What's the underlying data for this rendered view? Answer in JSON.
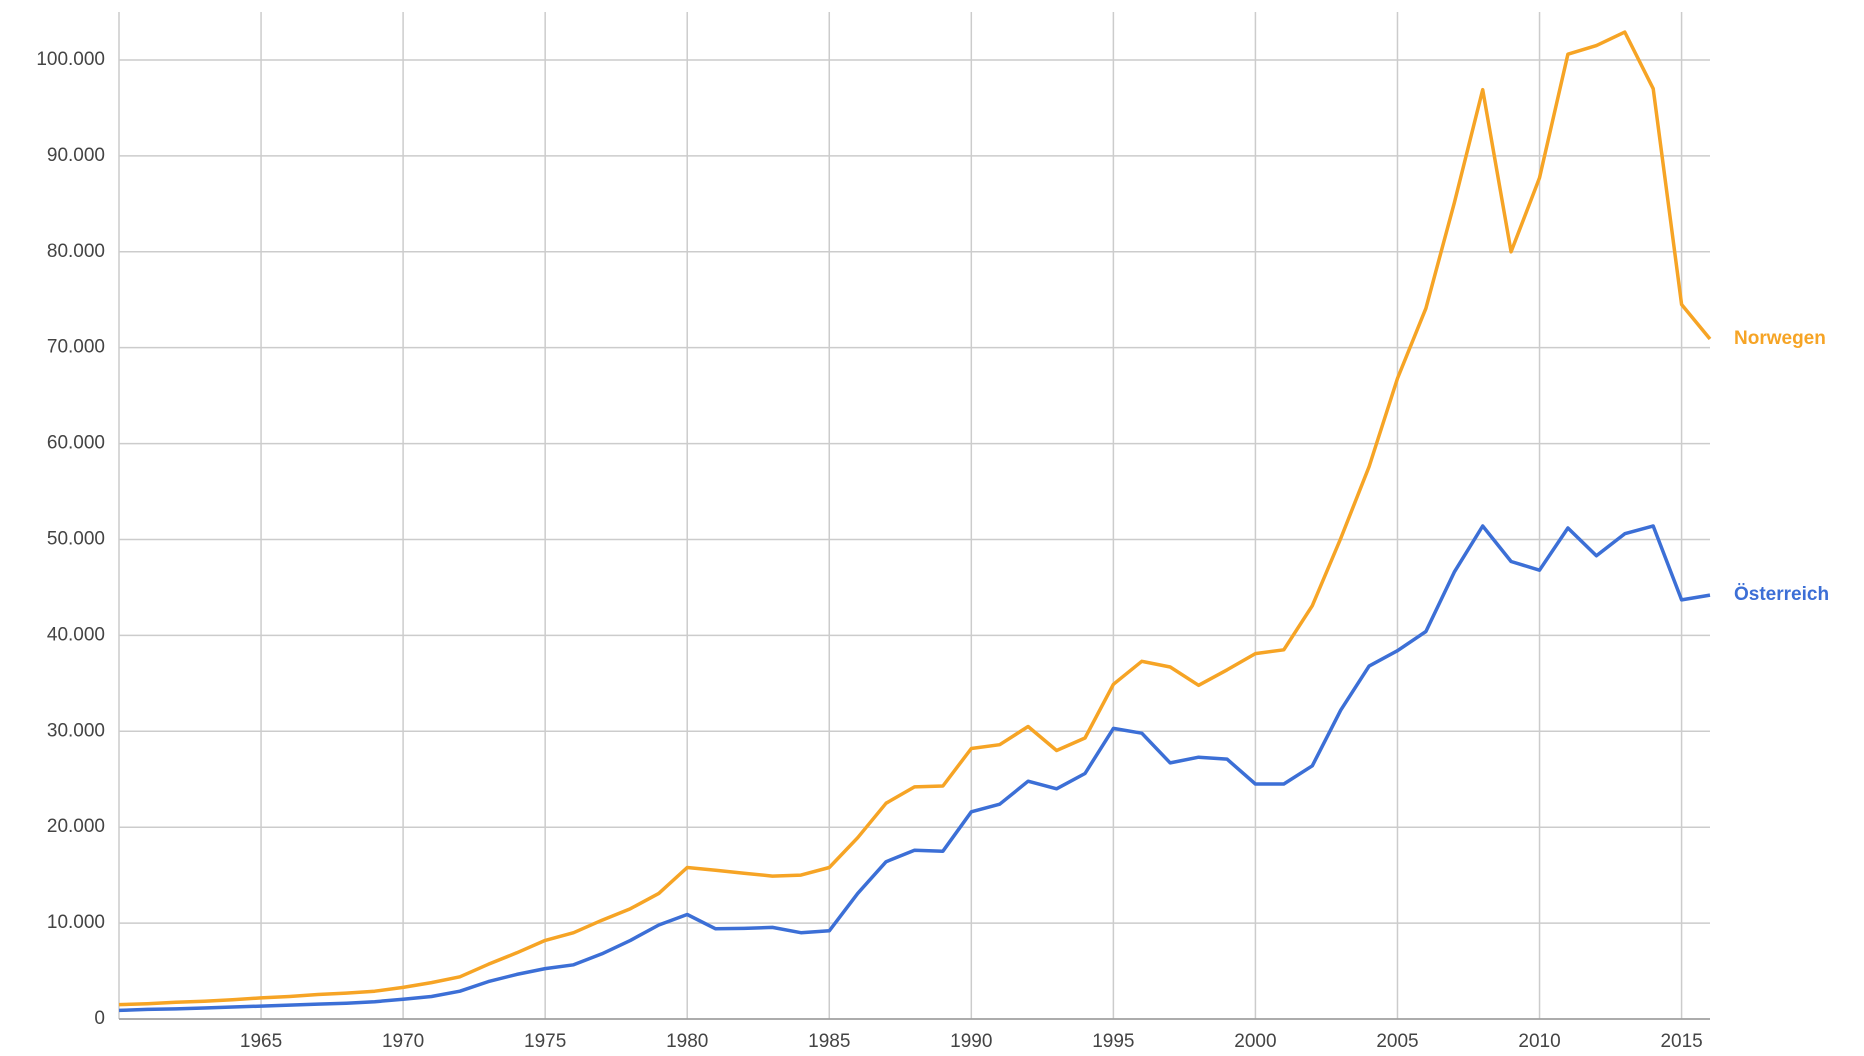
{
  "chart_data": {
    "type": "line",
    "x": [
      1960,
      1961,
      1962,
      1963,
      1964,
      1965,
      1966,
      1967,
      1968,
      1969,
      1970,
      1971,
      1972,
      1973,
      1974,
      1975,
      1976,
      1977,
      1978,
      1979,
      1980,
      1981,
      1982,
      1983,
      1984,
      1985,
      1986,
      1987,
      1988,
      1989,
      1990,
      1991,
      1992,
      1993,
      1994,
      1995,
      1996,
      1997,
      1998,
      1999,
      2000,
      2001,
      2002,
      2003,
      2004,
      2005,
      2006,
      2007,
      2008,
      2009,
      2010,
      2011,
      2012,
      2013,
      2014,
      2015,
      2016
    ],
    "series": [
      {
        "name": "Norwegen",
        "color": "#f6a425",
        "values": [
          1500,
          1600,
          1750,
          1850,
          2000,
          2200,
          2350,
          2550,
          2700,
          2900,
          3300,
          3800,
          4400,
          5700,
          6900,
          8200,
          9000,
          10300,
          11500,
          13100,
          15800,
          15500,
          15200,
          14900,
          15000,
          15800,
          18900,
          22500,
          24200,
          24300,
          28200,
          28600,
          30500,
          28000,
          29300,
          34900,
          37300,
          36700,
          34800,
          36400,
          38100,
          38500,
          43100,
          50100,
          57600,
          66800,
          74100,
          85100,
          96900,
          80000,
          87700,
          100600,
          101500,
          102900,
          97000,
          74500,
          70900
        ]
      },
      {
        "name": "Österreich",
        "color": "#3c6fd6",
        "values": [
          900,
          1000,
          1050,
          1150,
          1250,
          1350,
          1450,
          1550,
          1650,
          1800,
          2050,
          2350,
          2900,
          3900,
          4650,
          5250,
          5650,
          6800,
          8200,
          9800,
          10900,
          9400,
          9450,
          9550,
          9000,
          9200,
          13100,
          16400,
          17600,
          17500,
          21600,
          22400,
          24800,
          24000,
          25600,
          30300,
          29800,
          26700,
          27300,
          27100,
          24500,
          24500,
          26400,
          32200,
          36800,
          38400,
          40400,
          46600,
          51400,
          47700,
          46800,
          51200,
          48300,
          50600,
          51400,
          43700,
          44200
        ]
      }
    ],
    "xlim": [
      1960,
      2016
    ],
    "xticks": [
      1965,
      1970,
      1975,
      1980,
      1985,
      1990,
      1995,
      2000,
      2005,
      2010,
      2015
    ],
    "ylim": [
      0,
      105000
    ],
    "yticks": [
      0,
      {
        "value": 10000,
        "label": "10.000"
      },
      {
        "value": 20000,
        "label": "20.000"
      },
      {
        "value": 30000,
        "label": "30.000"
      },
      {
        "value": 40000,
        "label": "40.000"
      },
      {
        "value": 50000,
        "label": "50.000"
      },
      {
        "value": 60000,
        "label": "60.000"
      },
      {
        "value": 70000,
        "label": "70.000"
      },
      {
        "value": 80000,
        "label": "80.000"
      },
      {
        "value": 90000,
        "label": "90.000"
      },
      {
        "value": 100000,
        "label": "100.000"
      }
    ],
    "grid": true
  }
}
